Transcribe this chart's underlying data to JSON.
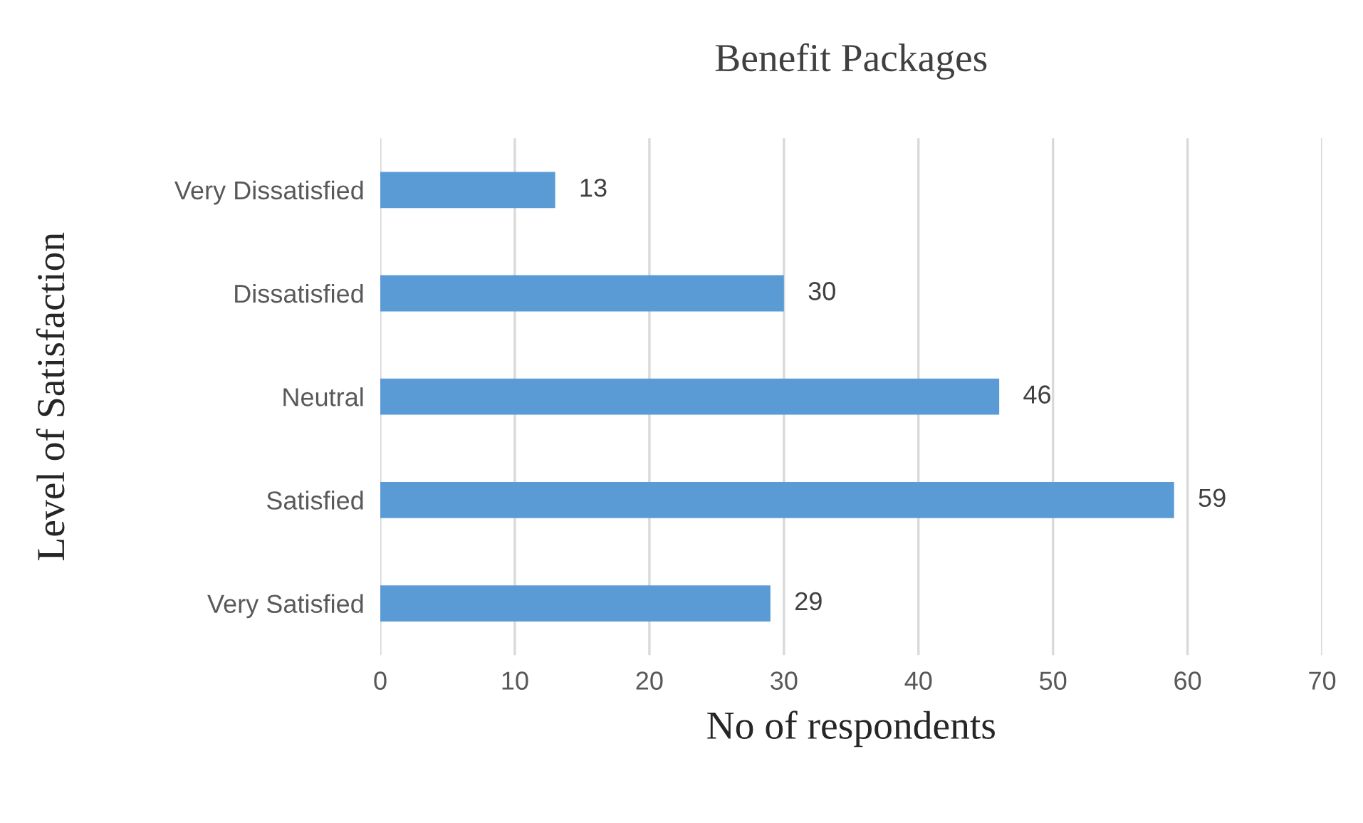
{
  "chart_data": {
    "type": "bar",
    "orientation": "horizontal",
    "title": "Benefit Packages",
    "xlabel": "No of respondents",
    "ylabel": "Level of Satisfaction",
    "categories": [
      "Very Dissatisfied",
      "Dissatisfied",
      "Neutral",
      "Satisfied",
      "Very Satisfied"
    ],
    "values": [
      13,
      30,
      46,
      59,
      29
    ],
    "color": "#5b9bd5",
    "data_labels": true,
    "xlim": [
      0,
      70
    ],
    "xticks": [
      0,
      10,
      20,
      30,
      40,
      50,
      60,
      70
    ],
    "grid": "x",
    "legend": false
  }
}
